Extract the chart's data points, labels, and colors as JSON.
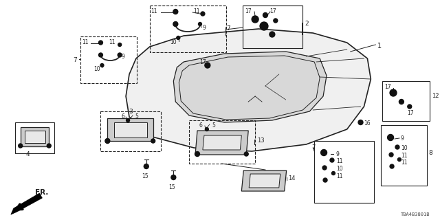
{
  "diagram_code": "TBA4B3801B",
  "bg_color": "#ffffff",
  "lc": "#222222"
}
